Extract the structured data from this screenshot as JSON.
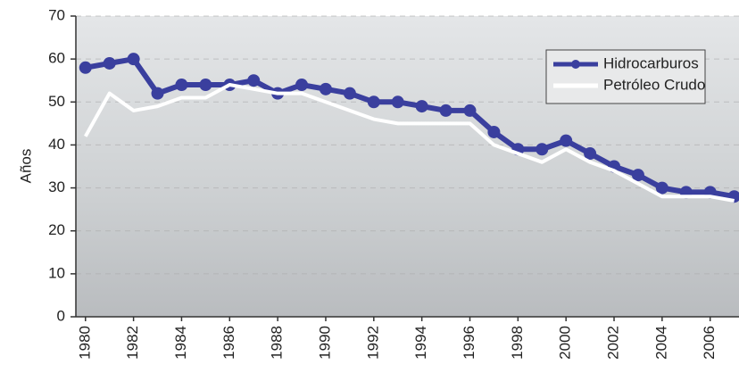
{
  "chart_data": {
    "type": "line",
    "y_label": "Años",
    "x": [
      1980,
      1981,
      1982,
      1983,
      1984,
      1985,
      1986,
      1987,
      1988,
      1989,
      1990,
      1991,
      1992,
      1993,
      1994,
      1995,
      1996,
      1997,
      1998,
      1999,
      2000,
      2001,
      2002,
      2003,
      2004,
      2005,
      2006,
      2007
    ],
    "series": [
      {
        "name": "Hidrocarburos",
        "color": "#3a3f9e",
        "marker": true,
        "values": [
          58,
          59,
          60,
          52,
          54,
          54,
          54,
          55,
          52,
          54,
          53,
          52,
          50,
          50,
          49,
          48,
          48,
          43,
          39,
          39,
          41,
          38,
          35,
          33,
          30,
          29,
          29,
          28
        ]
      },
      {
        "name": "Petróleo Crudo",
        "color": "#ffffff",
        "marker": false,
        "values": [
          42,
          52,
          48,
          49,
          51,
          51,
          54,
          53,
          52,
          52,
          50,
          48,
          46,
          45,
          45,
          45,
          45,
          40,
          38,
          36,
          39,
          36,
          34,
          31,
          28,
          28,
          28,
          27
        ]
      }
    ],
    "xlim": [
      1979.6,
      2007.2
    ],
    "xticks": [
      1980,
      1982,
      1984,
      1986,
      1988,
      1990,
      1992,
      1994,
      1996,
      1998,
      2000,
      2002,
      2004,
      2006
    ],
    "ylim": [
      0,
      70
    ],
    "yticks": [
      0,
      10,
      20,
      30,
      40,
      50,
      60,
      70
    ],
    "grid": true,
    "legend": "upper right"
  }
}
